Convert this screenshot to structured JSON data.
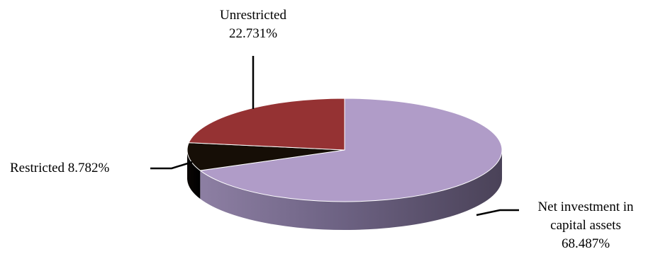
{
  "chart_data": {
    "type": "pie",
    "title": "",
    "three_d": true,
    "slices": [
      {
        "name": "Net investment in capital assets",
        "value": 68.487,
        "value_label": "68.487%",
        "color": "#b09cc8"
      },
      {
        "name": "Restricted",
        "value": 8.782,
        "value_label": "8.782%",
        "color": "#160e06"
      },
      {
        "name": "Unrestricted",
        "value": 22.731,
        "value_label": "22.731%",
        "color": "#953233"
      }
    ],
    "labels": {
      "unrestricted": {
        "name": "Unrestricted",
        "value": "22.731%"
      },
      "restricted": {
        "text": "Restricted 8.782%"
      },
      "net_investment": {
        "line1": "Net investment in",
        "line2": "capital assets",
        "line3": "68.487%"
      }
    }
  }
}
